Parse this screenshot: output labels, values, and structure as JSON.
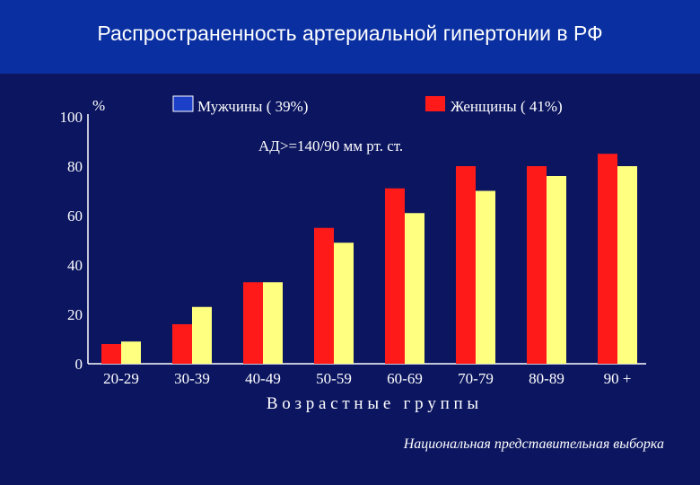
{
  "header": {
    "title": "Распространенность артериальной гипертонии в РФ"
  },
  "footnote": "Национальная представительная выборка",
  "colors": {
    "background": "#0c1660",
    "header": "#0a2fa0",
    "female": "#ff1a1a",
    "male": "#ffff80",
    "legend_male_swatch": "#1c3fc8",
    "text": "#ffffff"
  },
  "chart_data": {
    "type": "bar",
    "title": "",
    "subtitle": "АД>=140/90 мм рт. ст.",
    "ylabel": "%",
    "xlabel": "В о з р а с т н ы е   г р у п п ы",
    "ylim": [
      0,
      100
    ],
    "yticks": [
      0,
      20,
      40,
      60,
      80,
      100
    ],
    "categories": [
      "20-29",
      "30-39",
      "40-49",
      "50-59",
      "60-69",
      "70-79",
      "80-89",
      "90 +"
    ],
    "series": [
      {
        "name": "Женщины ( 41%)",
        "color": "#ff1a1a",
        "values": [
          8,
          16,
          33,
          55,
          71,
          80,
          80,
          85
        ]
      },
      {
        "name": "Мужчины ( 39%)",
        "color": "#ffff80",
        "values": [
          9,
          23,
          33,
          49,
          61,
          70,
          76,
          80
        ]
      }
    ],
    "legend": {
      "male": "Мужчины ( 39%)",
      "female": "Женщины ( 41%)"
    }
  }
}
